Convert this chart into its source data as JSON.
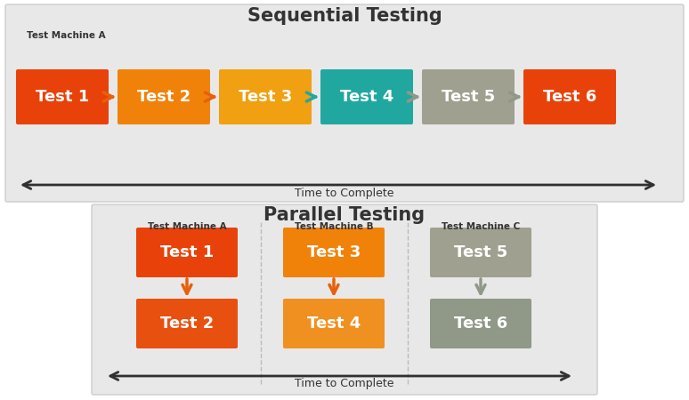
{
  "fig_width": 7.74,
  "fig_height": 4.5,
  "bg_color": "#ffffff",
  "panel_bg": "#e8e8e8",
  "title_sequential": "Sequential Testing",
  "title_parallel": "Parallel Testing",
  "label_machine_a": "Test Machine A",
  "label_machine_b": "Test Machine B",
  "label_machine_c": "Test Machine C",
  "time_label": "Time to Complete",
  "seq_boxes": [
    {
      "label": "Test 1",
      "color": "#e8420a"
    },
    {
      "label": "Test 2",
      "color": "#f0820a"
    },
    {
      "label": "Test 3",
      "color": "#f0a010"
    },
    {
      "label": "Test 4",
      "color": "#20a8a0"
    },
    {
      "label": "Test 5",
      "color": "#a0a090"
    },
    {
      "label": "Test 6",
      "color": "#e8420a"
    }
  ],
  "par_col_a": [
    {
      "label": "Test 1",
      "color": "#e8420a"
    },
    {
      "label": "Test 2",
      "color": "#e85010"
    }
  ],
  "par_col_b": [
    {
      "label": "Test 3",
      "color": "#f0820a"
    },
    {
      "label": "Test 4",
      "color": "#f09020"
    }
  ],
  "par_col_c": [
    {
      "label": "Test 5",
      "color": "#a0a090"
    },
    {
      "label": "Test 6",
      "color": "#909888"
    }
  ],
  "box_text_color": "#ffffff",
  "arrow_color_orange": "#e8600a",
  "arrow_color_gray": "#909888",
  "arrow_color_teal": "#20a8a0",
  "arrow_color_dark": "#303030"
}
